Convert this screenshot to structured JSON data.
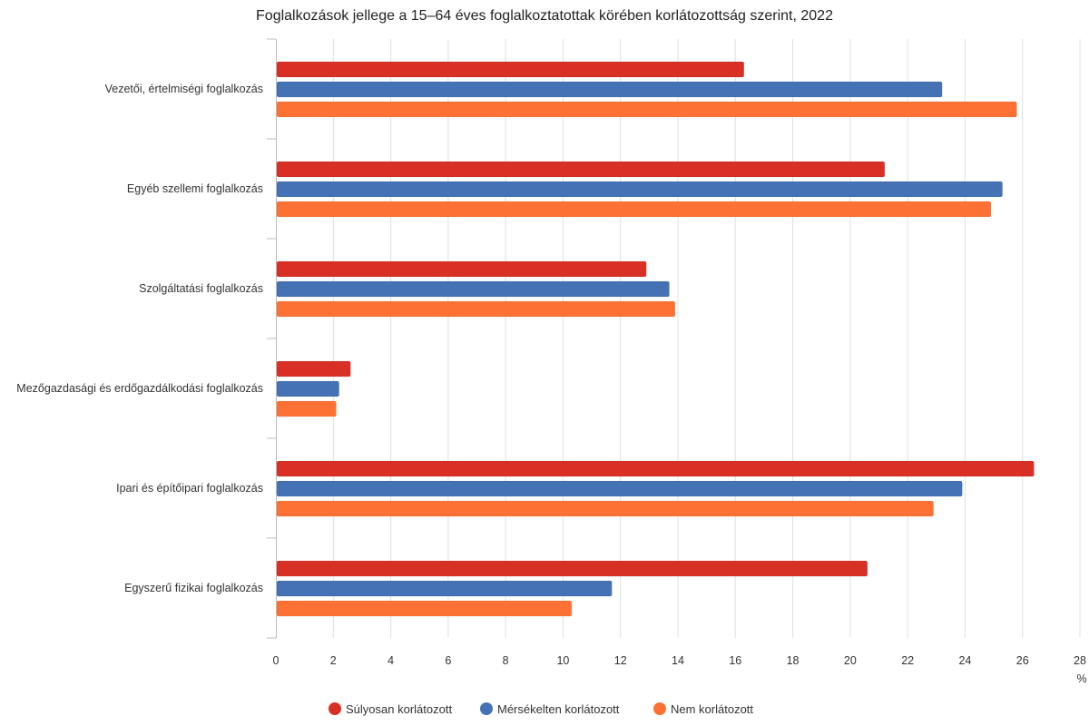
{
  "chart_data": {
    "type": "bar",
    "orientation": "horizontal",
    "title": "Foglalkozások jellege a 15–64 éves foglalkoztatottak körében korlátozottság szerint, 2022",
    "xlabel": "%",
    "ylabel": "",
    "xlim": [
      0,
      28
    ],
    "xticks": [
      0,
      2,
      4,
      6,
      8,
      10,
      12,
      14,
      16,
      18,
      20,
      22,
      24,
      26,
      28
    ],
    "grid": true,
    "legend_position": "bottom",
    "categories": [
      "Vezetői, értelmiségi foglalkozás",
      "Egyéb szellemi foglalkozás",
      "Szolgáltatási foglalkozás",
      "Mezőgazdasági és erdőgazdálkodási foglalkozás",
      "Ipari és építőipari foglalkozás",
      "Egyszerű fizikai foglalkozás"
    ],
    "series": [
      {
        "name": "Súlyosan korlátozott",
        "color": "#d93025",
        "values": [
          16.3,
          21.2,
          12.9,
          2.6,
          26.4,
          20.6
        ]
      },
      {
        "name": "Mérsékelten korlátozott",
        "color": "#4472b5",
        "values": [
          23.2,
          25.3,
          13.7,
          2.2,
          23.9,
          11.7
        ]
      },
      {
        "name": "Nem korlátozott",
        "color": "#fd7234",
        "values": [
          25.8,
          24.9,
          13.9,
          2.1,
          22.9,
          10.3
        ]
      }
    ]
  }
}
